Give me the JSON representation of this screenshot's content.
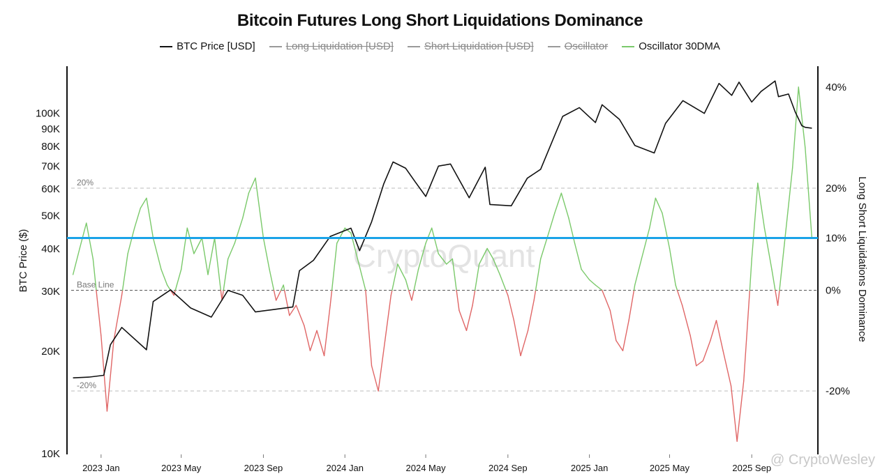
{
  "title": "Bitcoin Futures Long Short Liquidations Dominance",
  "legend": [
    {
      "label": "BTC Price [USD]",
      "color": "#111111",
      "hidden": false
    },
    {
      "label": "Long Liquidation [USD]",
      "color": "#999999",
      "hidden": true
    },
    {
      "label": "Short Liquidation [USD]",
      "color": "#999999",
      "hidden": true
    },
    {
      "label": "Oscillator",
      "color": "#999999",
      "hidden": true
    },
    {
      "label": "Oscillator 30DMA",
      "color": "#7ac96a",
      "hidden": false
    }
  ],
  "left_axis_title": "BTC Price ($)",
  "right_axis_title": "Long Short Liquidations Dominance",
  "watermark": "CryptoQuant",
  "credit": "@ CryptoWesley",
  "colors": {
    "price": "#111111",
    "osc_positive": "#7ac96a",
    "osc_negative": "#e06666",
    "threshold_line": "#1aa3e8",
    "ref_lines": "#bbbbbb",
    "base_line": "#555555"
  },
  "chart_data": {
    "type": "line",
    "x_ticks": [
      "2023 Jan",
      "2023 May",
      "2023 Sep",
      "2024 Jan",
      "2024 May",
      "2024 Sep",
      "2025 Jan",
      "2025 May",
      "2025 Sep"
    ],
    "y_left": {
      "scale": "log",
      "ticks": [
        "10K",
        "20K",
        "30K",
        "40K",
        "50K",
        "60K",
        "70K",
        "80K",
        "90K",
        "100K"
      ]
    },
    "y_right": {
      "ticks": [
        "40%",
        "20%",
        "10%",
        "0%",
        "-20%"
      ]
    },
    "reference_lines": [
      {
        "label": "20%",
        "value": 20
      },
      {
        "label": "Base Line",
        "value": 0
      },
      {
        "label": "-20%",
        "value": -20
      }
    ],
    "threshold": 10,
    "series": [
      {
        "name": "BTC Price [USD]",
        "x": [
          "2022-11-20",
          "2022-12-15",
          "2023-01-05",
          "2023-01-15",
          "2023-02-01",
          "2023-03-10",
          "2023-03-20",
          "2023-04-15",
          "2023-05-15",
          "2023-06-15",
          "2023-07-10",
          "2023-08-01",
          "2023-08-20",
          "2023-09-15",
          "2023-10-15",
          "2023-10-25",
          "2023-11-15",
          "2023-12-10",
          "2024-01-10",
          "2024-01-23",
          "2024-02-10",
          "2024-02-28",
          "2024-03-13",
          "2024-04-01",
          "2024-04-15",
          "2024-05-01",
          "2024-05-20",
          "2024-06-07",
          "2024-07-05",
          "2024-07-29",
          "2024-08-05",
          "2024-09-06",
          "2024-09-30",
          "2024-10-20",
          "2024-11-12",
          "2024-11-22",
          "2024-12-17",
          "2025-01-10",
          "2025-01-20",
          "2025-02-15",
          "2025-03-10",
          "2025-04-08",
          "2025-04-25",
          "2025-05-21",
          "2025-06-22",
          "2025-07-14",
          "2025-08-02",
          "2025-08-13",
          "2025-09-01",
          "2025-09-15",
          "2025-10-06",
          "2025-10-11",
          "2025-10-26",
          "2025-11-05",
          "2025-11-15",
          "2025-11-20",
          "2025-11-30"
        ],
        "y": [
          16700,
          16800,
          17000,
          20900,
          23500,
          20200,
          28000,
          30300,
          26800,
          25200,
          30200,
          29200,
          26100,
          26500,
          27000,
          34500,
          37000,
          43500,
          46000,
          39500,
          48000,
          62000,
          72000,
          69000,
          63000,
          57000,
          70000,
          71000,
          56500,
          69500,
          54000,
          53500,
          64500,
          68500,
          88000,
          98000,
          104000,
          94000,
          106000,
          96000,
          80500,
          76500,
          93500,
          109000,
          100000,
          122500,
          113000,
          123500,
          108000,
          116000,
          124500,
          112000,
          114000,
          101000,
          92000,
          91000,
          90500
        ]
      },
      {
        "name": "Oscillator 30DMA",
        "x": [
          "2022-11-20",
          "2022-11-30",
          "2022-12-10",
          "2022-12-20",
          "2023-01-01",
          "2023-01-10",
          "2023-01-20",
          "2023-02-01",
          "2023-02-10",
          "2023-02-20",
          "2023-03-01",
          "2023-03-10",
          "2023-03-20",
          "2023-04-01",
          "2023-04-10",
          "2023-04-20",
          "2023-05-01",
          "2023-05-10",
          "2023-05-20",
          "2023-06-01",
          "2023-06-10",
          "2023-06-20",
          "2023-07-01",
          "2023-07-10",
          "2023-07-20",
          "2023-08-01",
          "2023-08-10",
          "2023-08-20",
          "2023-09-01",
          "2023-09-10",
          "2023-09-20",
          "2023-10-01",
          "2023-10-10",
          "2023-10-20",
          "2023-11-01",
          "2023-11-10",
          "2023-11-20",
          "2023-12-01",
          "2023-12-10",
          "2023-12-20",
          "2024-01-01",
          "2024-01-10",
          "2024-01-20",
          "2024-02-01",
          "2024-02-10",
          "2024-02-20",
          "2024-03-01",
          "2024-03-10",
          "2024-03-20",
          "2024-04-01",
          "2024-04-10",
          "2024-04-20",
          "2024-05-01",
          "2024-05-10",
          "2024-05-20",
          "2024-06-01",
          "2024-06-10",
          "2024-06-20",
          "2024-07-01",
          "2024-07-10",
          "2024-07-20",
          "2024-08-01",
          "2024-08-10",
          "2024-08-20",
          "2024-09-01",
          "2024-09-10",
          "2024-09-20",
          "2024-10-01",
          "2024-10-10",
          "2024-10-20",
          "2024-11-01",
          "2024-11-10",
          "2024-11-20",
          "2024-12-01",
          "2024-12-10",
          "2024-12-20",
          "2025-01-01",
          "2025-01-10",
          "2025-01-20",
          "2025-02-01",
          "2025-02-10",
          "2025-02-20",
          "2025-03-01",
          "2025-03-10",
          "2025-03-20",
          "2025-04-01",
          "2025-04-10",
          "2025-04-20",
          "2025-05-01",
          "2025-05-10",
          "2025-05-20",
          "2025-06-01",
          "2025-06-10",
          "2025-06-20",
          "2025-07-01",
          "2025-07-10",
          "2025-07-20",
          "2025-08-01",
          "2025-08-10",
          "2025-08-20",
          "2025-09-01",
          "2025-09-10",
          "2025-09-20",
          "2025-10-01",
          "2025-10-10",
          "2025-10-20",
          "2025-11-01",
          "2025-11-10",
          "2025-11-20",
          "2025-11-30"
        ],
        "y": [
          3,
          8,
          13,
          6,
          -9,
          -24,
          -10,
          -1,
          7,
          12,
          16,
          18,
          10,
          4,
          1,
          -1,
          4,
          12,
          7,
          10,
          3,
          10,
          -2,
          6,
          9,
          14,
          19,
          22,
          10,
          4,
          -2,
          1,
          -5,
          -3,
          -7,
          -12,
          -8,
          -13,
          -3,
          9,
          12,
          11,
          6,
          0,
          -15,
          -20,
          -10,
          -1,
          5,
          2,
          -2,
          4,
          9,
          12,
          7,
          5,
          6,
          -4,
          -8,
          -3,
          5,
          8,
          6,
          3,
          -1,
          -6,
          -13,
          -8,
          -2,
          6,
          11,
          15,
          19,
          14,
          9,
          4,
          2,
          1,
          0,
          -4,
          -10,
          -12,
          -6,
          1,
          6,
          12,
          18,
          15,
          8,
          1,
          -3,
          -9,
          -15,
          -14,
          -10,
          -6,
          -12,
          -19,
          -30,
          -18,
          6,
          21,
          12,
          4,
          -3,
          9,
          24,
          40,
          28,
          10
        ]
      }
    ]
  }
}
